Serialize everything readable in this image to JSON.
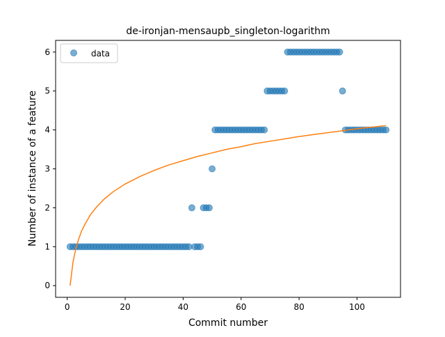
{
  "chart_data": {
    "type": "scatter",
    "title": "de-ironjan-mensaupb_singleton-logarithm",
    "xlabel": "Commit number",
    "ylabel": "Number of instance of a feature",
    "xlim": [
      -4,
      115
    ],
    "ylim": [
      -0.3,
      6.3
    ],
    "xticks": [
      0,
      20,
      40,
      60,
      80,
      100
    ],
    "yticks": [
      0,
      1,
      2,
      3,
      4,
      5,
      6
    ],
    "legend": "top-left",
    "grid": false,
    "series": [
      {
        "name": "data",
        "kind": "points",
        "color": "#1f77b4",
        "x": [
          1,
          2,
          3,
          4,
          5,
          6,
          7,
          8,
          9,
          10,
          11,
          12,
          13,
          14,
          15,
          16,
          17,
          18,
          19,
          20,
          21,
          22,
          23,
          24,
          25,
          26,
          27,
          28,
          29,
          30,
          31,
          32,
          33,
          34,
          35,
          36,
          37,
          38,
          39,
          40,
          41,
          42,
          43,
          44,
          45,
          46,
          47,
          48,
          49,
          50,
          51,
          52,
          53,
          54,
          55,
          56,
          57,
          58,
          59,
          60,
          61,
          62,
          63,
          64,
          65,
          66,
          67,
          68,
          69,
          70,
          71,
          72,
          73,
          74,
          75,
          76,
          77,
          78,
          79,
          80,
          81,
          82,
          83,
          84,
          85,
          86,
          87,
          88,
          89,
          90,
          91,
          92,
          93,
          94,
          95,
          96,
          97,
          98,
          99,
          100,
          101,
          102,
          103,
          104,
          105,
          106,
          107,
          108,
          109,
          110
        ],
        "y": [
          1,
          1,
          1,
          1,
          1,
          1,
          1,
          1,
          1,
          1,
          1,
          1,
          1,
          1,
          1,
          1,
          1,
          1,
          1,
          1,
          1,
          1,
          1,
          1,
          1,
          1,
          1,
          1,
          1,
          1,
          1,
          1,
          1,
          1,
          1,
          1,
          1,
          1,
          1,
          1,
          1,
          1,
          2,
          1,
          1,
          1,
          2,
          2,
          2,
          3,
          4,
          4,
          4,
          4,
          4,
          4,
          4,
          4,
          4,
          4,
          4,
          4,
          4,
          4,
          4,
          4,
          4,
          4,
          5,
          5,
          5,
          5,
          5,
          5,
          5,
          6,
          6,
          6,
          6,
          6,
          6,
          6,
          6,
          6,
          6,
          6,
          6,
          6,
          6,
          6,
          6,
          6,
          6,
          6,
          5,
          4,
          4,
          4,
          4,
          4,
          4,
          4,
          4,
          4,
          4,
          4,
          4,
          4,
          4,
          4
        ]
      },
      {
        "name": "",
        "kind": "line",
        "color": "#ff7f0e",
        "fit": "logarithmic",
        "x": [
          1,
          2,
          3,
          4,
          5,
          6,
          8,
          10,
          13,
          16,
          20,
          25,
          30,
          35,
          40,
          45,
          50,
          55,
          60,
          65,
          70,
          75,
          80,
          85,
          90,
          95,
          100,
          105,
          110
        ],
        "y": [
          0.0,
          0.61,
          0.96,
          1.21,
          1.41,
          1.56,
          1.82,
          2.01,
          2.24,
          2.42,
          2.61,
          2.8,
          2.96,
          3.1,
          3.21,
          3.32,
          3.41,
          3.5,
          3.57,
          3.65,
          3.71,
          3.77,
          3.83,
          3.88,
          3.93,
          3.98,
          4.03,
          4.07,
          4.11
        ]
      }
    ]
  }
}
